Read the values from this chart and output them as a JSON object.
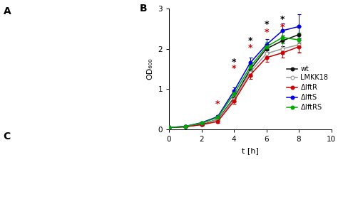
{
  "xlabel": "t [h]",
  "ylabel": "OD₆₀₀",
  "xlim": [
    0,
    10
  ],
  "ylim": [
    0,
    3
  ],
  "yticks": [
    0,
    1,
    2,
    3
  ],
  "xticks": [
    0,
    2,
    4,
    6,
    8,
    10
  ],
  "time": [
    0,
    1,
    2,
    3,
    4,
    5,
    6,
    7,
    8
  ],
  "wt": [
    0.05,
    0.07,
    0.13,
    0.25,
    0.78,
    1.48,
    2.0,
    2.2,
    2.35
  ],
  "wt_err": [
    0.01,
    0.01,
    0.02,
    0.03,
    0.08,
    0.12,
    0.12,
    0.13,
    0.2
  ],
  "lmkk18": [
    0.05,
    0.07,
    0.15,
    0.24,
    0.75,
    1.42,
    1.88,
    2.0,
    2.1
  ],
  "lmkk18_err": [
    0.01,
    0.01,
    0.02,
    0.03,
    0.07,
    0.1,
    0.12,
    0.13,
    0.18
  ],
  "dlftr": [
    0.05,
    0.07,
    0.12,
    0.2,
    0.7,
    1.35,
    1.78,
    1.9,
    2.05
  ],
  "dlftr_err": [
    0.01,
    0.01,
    0.02,
    0.03,
    0.07,
    0.1,
    0.11,
    0.12,
    0.15
  ],
  "dlfts": [
    0.05,
    0.08,
    0.17,
    0.32,
    0.95,
    1.65,
    2.1,
    2.45,
    2.55
  ],
  "dlfts_err": [
    0.01,
    0.01,
    0.02,
    0.04,
    0.09,
    0.13,
    0.14,
    0.18,
    0.3
  ],
  "dlftrs": [
    0.05,
    0.08,
    0.16,
    0.3,
    0.88,
    1.55,
    2.05,
    2.28,
    2.22
  ],
  "dlftrs_err": [
    0.01,
    0.01,
    0.02,
    0.04,
    0.08,
    0.11,
    0.12,
    0.15,
    0.18
  ],
  "wt_color": "#111111",
  "lmkk18_color": "#999999",
  "dlftr_color": "#cc0000",
  "dlfts_color": "#0000dd",
  "dlftrs_color": "#00aa00",
  "black_ast": {
    "4": 1.55,
    "5": 2.08,
    "6": 2.48,
    "7": 2.6
  },
  "red_ast": {
    "3": 0.52,
    "4": 1.4,
    "5": 1.9,
    "6": 2.3,
    "7": 2.42
  },
  "bg_color": "#ffffff"
}
